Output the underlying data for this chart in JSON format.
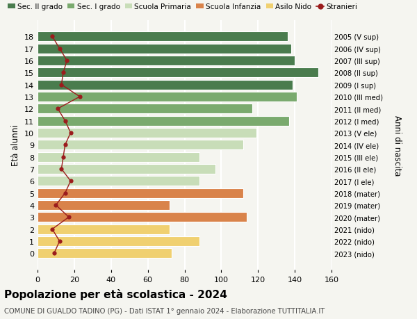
{
  "ages": [
    18,
    17,
    16,
    15,
    14,
    13,
    12,
    11,
    10,
    9,
    8,
    7,
    6,
    5,
    4,
    3,
    2,
    1,
    0
  ],
  "anni_nascita": [
    "2005 (V sup)",
    "2006 (IV sup)",
    "2007 (III sup)",
    "2008 (II sup)",
    "2009 (I sup)",
    "2010 (III med)",
    "2011 (II med)",
    "2012 (I med)",
    "2013 (V ele)",
    "2014 (IV ele)",
    "2015 (III ele)",
    "2016 (II ele)",
    "2017 (I ele)",
    "2018 (mater)",
    "2019 (mater)",
    "2020 (mater)",
    "2021 (nido)",
    "2022 (nido)",
    "2023 (nido)"
  ],
  "bar_values": [
    136,
    138,
    140,
    153,
    139,
    141,
    117,
    137,
    119,
    112,
    88,
    97,
    88,
    112,
    72,
    114,
    72,
    88,
    73
  ],
  "bar_colors": [
    "#4a7c4e",
    "#4a7c4e",
    "#4a7c4e",
    "#4a7c4e",
    "#4a7c4e",
    "#7aaa6e",
    "#7aaa6e",
    "#7aaa6e",
    "#c8ddb8",
    "#c8ddb8",
    "#c8ddb8",
    "#c8ddb8",
    "#c8ddb8",
    "#d9834a",
    "#d9834a",
    "#d9834a",
    "#f0d070",
    "#f0d070",
    "#f0d070"
  ],
  "stranieri_values": [
    8,
    12,
    16,
    14,
    13,
    23,
    11,
    15,
    18,
    15,
    14,
    13,
    18,
    15,
    10,
    17,
    8,
    12,
    9
  ],
  "stranieri_color": "#9b1c1c",
  "title": "Popolazione per età scolastica - 2024",
  "subtitle": "COMUNE DI GUALDO TADINO (PG) - Dati ISTAT 1° gennaio 2024 - Elaborazione TUTTITALIA.IT",
  "ylabel": "Età alunni",
  "right_ylabel": "Anni di nascita",
  "xlim": [
    0,
    160
  ],
  "xticks": [
    0,
    20,
    40,
    60,
    80,
    100,
    120,
    140,
    160
  ],
  "legend_labels": [
    "Sec. II grado",
    "Sec. I grado",
    "Scuola Primaria",
    "Scuola Infanzia",
    "Asilo Nido",
    "Stranieri"
  ],
  "legend_colors": [
    "#4a7c4e",
    "#7aaa6e",
    "#c8ddb8",
    "#d9834a",
    "#f0d070",
    "#9b1c1c"
  ],
  "background_color": "#f5f5f0",
  "grid_color": "#dddddd"
}
